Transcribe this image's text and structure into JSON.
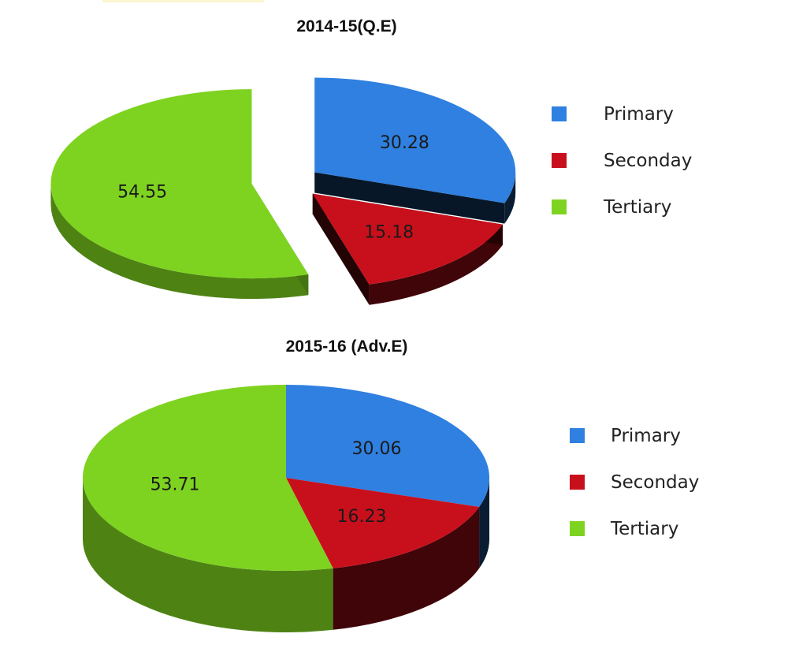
{
  "chart_data": [
    {
      "type": "pie",
      "title": "2014-15(Q.E)",
      "exploded": true,
      "categories": [
        "Primary",
        "Seconday",
        "Tertiary"
      ],
      "values": [
        30.28,
        15.18,
        54.55
      ],
      "colors": [
        "#2f80e0",
        "#c8101c",
        "#7ed321"
      ],
      "legend_position": "right"
    },
    {
      "type": "pie",
      "title": "2015-16 (Adv.E)",
      "exploded": false,
      "categories": [
        "Primary",
        "Seconday",
        "Tertiary"
      ],
      "values": [
        30.06,
        16.23,
        53.71
      ],
      "colors": [
        "#2f80e0",
        "#c8101c",
        "#7ed321"
      ],
      "legend_position": "right"
    }
  ]
}
